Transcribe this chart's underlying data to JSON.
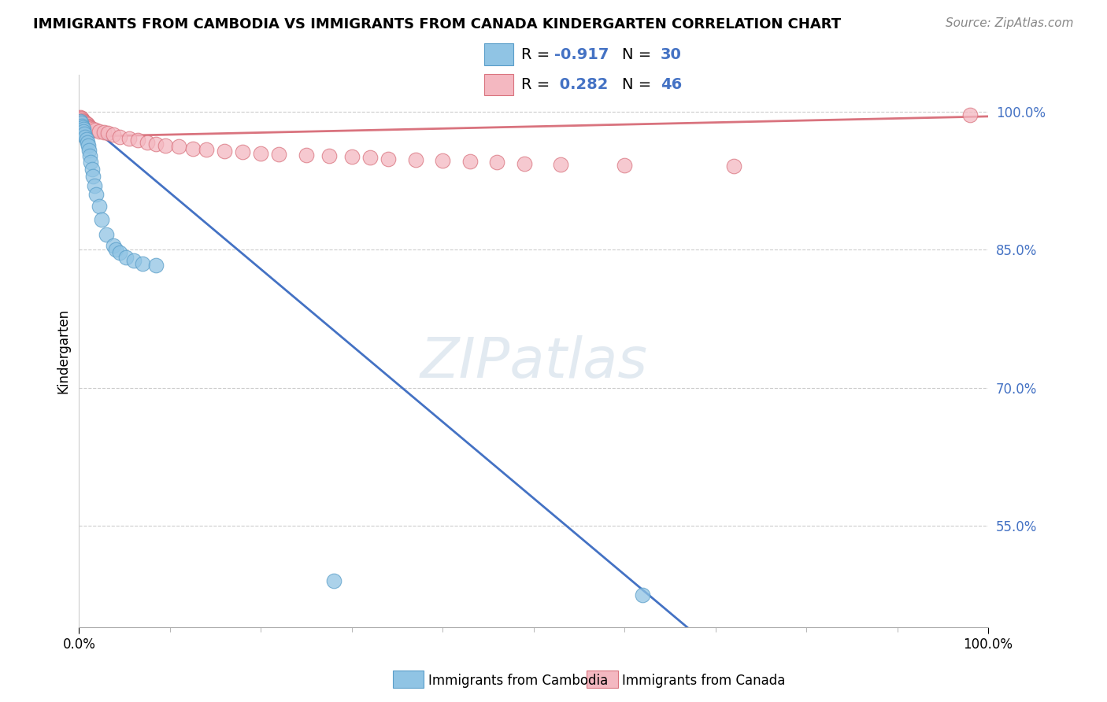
{
  "title": "IMMIGRANTS FROM CAMBODIA VS IMMIGRANTS FROM CANADA KINDERGARTEN CORRELATION CHART",
  "source": "Source: ZipAtlas.com",
  "ylabel": "Kindergarten",
  "xlim": [
    0,
    1.0
  ],
  "ylim": [
    0.44,
    1.04
  ],
  "yticks": [
    0.55,
    0.7,
    0.85,
    1.0
  ],
  "ytick_labels": [
    "55.0%",
    "70.0%",
    "85.0%",
    "100.0%"
  ],
  "watermark_text": "ZIPatlas",
  "cambodia_color": "#90c4e4",
  "cambodia_edge": "#5a9ec9",
  "cambodia_line": "#4472c4",
  "cambodia_label": "Immigrants from Cambodia",
  "cambodia_R": -0.917,
  "cambodia_N": 30,
  "cambodia_x": [
    0.001,
    0.002,
    0.003,
    0.004,
    0.005,
    0.005,
    0.006,
    0.007,
    0.008,
    0.009,
    0.01,
    0.011,
    0.012,
    0.013,
    0.014,
    0.015,
    0.017,
    0.019,
    0.022,
    0.025,
    0.03,
    0.038,
    0.04,
    0.045,
    0.052,
    0.06,
    0.07,
    0.085,
    0.28,
    0.62
  ],
  "cambodia_y": [
    0.99,
    0.988,
    0.985,
    0.983,
    0.981,
    0.979,
    0.976,
    0.973,
    0.97,
    0.967,
    0.963,
    0.958,
    0.952,
    0.945,
    0.938,
    0.93,
    0.92,
    0.91,
    0.897,
    0.883,
    0.867,
    0.855,
    0.85,
    0.847,
    0.842,
    0.838,
    0.835,
    0.833,
    0.49,
    0.475
  ],
  "canada_color": "#f4b8c1",
  "canada_edge": "#d9737e",
  "canada_line": "#d9737e",
  "canada_label": "Immigrants from Canada",
  "canada_R": 0.282,
  "canada_N": 46,
  "canada_x": [
    0.001,
    0.002,
    0.003,
    0.004,
    0.005,
    0.006,
    0.007,
    0.008,
    0.009,
    0.01,
    0.011,
    0.012,
    0.013,
    0.015,
    0.018,
    0.022,
    0.027,
    0.032,
    0.038,
    0.045,
    0.055,
    0.065,
    0.075,
    0.085,
    0.095,
    0.11,
    0.125,
    0.14,
    0.16,
    0.18,
    0.2,
    0.22,
    0.25,
    0.275,
    0.3,
    0.32,
    0.34,
    0.37,
    0.4,
    0.43,
    0.46,
    0.49,
    0.53,
    0.6,
    0.72,
    0.98
  ],
  "canada_y": [
    0.994,
    0.993,
    0.992,
    0.991,
    0.99,
    0.989,
    0.988,
    0.987,
    0.986,
    0.985,
    0.984,
    0.983,
    0.982,
    0.981,
    0.98,
    0.979,
    0.978,
    0.977,
    0.975,
    0.973,
    0.971,
    0.969,
    0.967,
    0.965,
    0.963,
    0.962,
    0.96,
    0.959,
    0.957,
    0.956,
    0.955,
    0.954,
    0.953,
    0.952,
    0.951,
    0.95,
    0.949,
    0.948,
    0.947,
    0.946,
    0.945,
    0.944,
    0.943,
    0.942,
    0.941,
    0.997
  ]
}
